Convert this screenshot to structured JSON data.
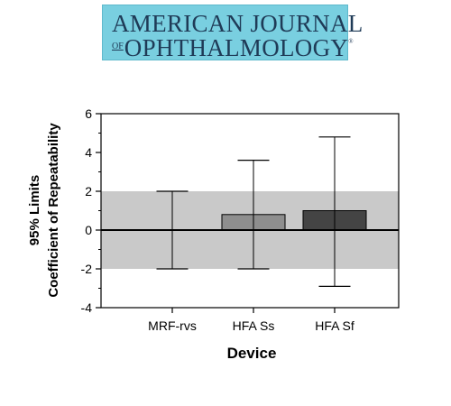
{
  "logo": {
    "line1": "AMERICAN JOURNAL",
    "of": "OF",
    "line2": "OPHTHALMOLOGY",
    "reg": "®"
  },
  "chart_data": {
    "type": "bar",
    "xlabel": "Device",
    "ylabel_line1": "95% Limits",
    "ylabel_line2": "Coefficient of Repeatability",
    "ylim": [
      -4,
      6
    ],
    "yticks": [
      6,
      4,
      2,
      0,
      -2,
      -4
    ],
    "shaded_band": [
      -2,
      2
    ],
    "categories": [
      "MRF-rvs",
      "HFA Ss",
      "HFA Sf"
    ],
    "values": [
      0,
      0.8,
      1.0
    ],
    "error_bars": [
      {
        "low": -2.0,
        "high": 2.0
      },
      {
        "low": -2.0,
        "high": 3.6
      },
      {
        "low": -2.9,
        "high": 4.8
      }
    ],
    "bar_colors": [
      "#b0b0b0",
      "#8e8e8e",
      "#444444"
    ],
    "band_color": "#c9c9c9",
    "logo_color": "#79cfe0"
  }
}
